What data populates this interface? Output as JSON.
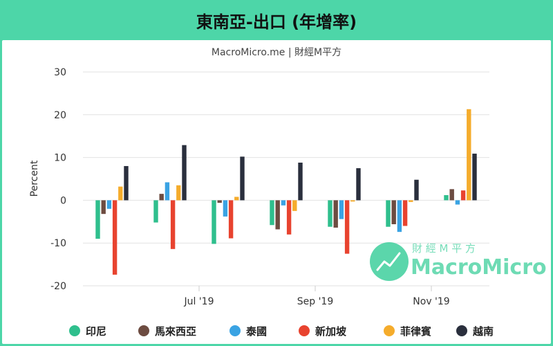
{
  "title": "東南亞-出口 (年增率)",
  "chart_data": {
    "type": "bar",
    "subtitle": "MacroMicro.me | 財經M平方",
    "ylabel": "Percent",
    "ylim": [
      -20,
      30
    ],
    "yticks": [
      30,
      20,
      10,
      0,
      -10,
      -20
    ],
    "grid": true,
    "legend_placement": "bottom",
    "x_tick_labels": [
      {
        "label": "Jul '19",
        "after_group": 1
      },
      {
        "label": "Sep '19",
        "after_group": 3
      },
      {
        "label": "Nov '19",
        "after_group": 5
      }
    ],
    "groups": 7,
    "series": [
      {
        "name": "印尼",
        "color": "#2fbf8d",
        "values": [
          -9,
          -5.2,
          -10.2,
          -5.8,
          -6.2,
          -6.2,
          1.2
        ]
      },
      {
        "name": "馬來西亞",
        "color": "#6d4c41",
        "values": [
          -3.2,
          1.5,
          -0.6,
          -6.8,
          -6.4,
          -5.6,
          2.6
        ]
      },
      {
        "name": "泰國",
        "color": "#3aa3e3",
        "values": [
          -2.0,
          4.2,
          -3.8,
          -1.2,
          -4.4,
          -7.4,
          -1.0
        ]
      },
      {
        "name": "新加坡",
        "color": "#e8432f",
        "values": [
          -17.4,
          -11.4,
          -8.9,
          -8.0,
          -12.5,
          -6.0,
          2.3
        ]
      },
      {
        "name": "菲律賓",
        "color": "#f5ac2c",
        "values": [
          3.2,
          3.5,
          0.8,
          -2.5,
          -0.3,
          -0.4,
          21.3
        ]
      },
      {
        "name": "越南",
        "color": "#2a2f3d",
        "values": [
          8.0,
          12.9,
          10.2,
          8.8,
          7.5,
          4.8,
          10.9
        ]
      }
    ]
  },
  "watermark": {
    "cn": "財 經 M 平 方",
    "en": "MacroMicro",
    "color": "#3ecf9c"
  }
}
